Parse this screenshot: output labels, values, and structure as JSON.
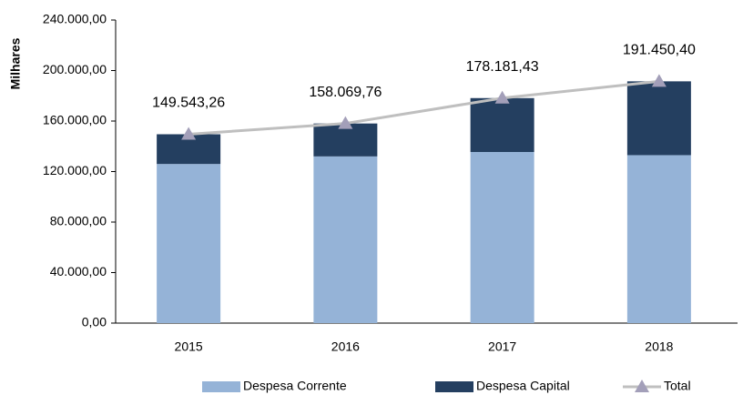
{
  "chart_data": {
    "type": "stacked_bar_line",
    "ylabel": "Milhares",
    "categories": [
      "2015",
      "2016",
      "2017",
      "2018"
    ],
    "series": [
      {
        "name": "Despesa Corrente",
        "type": "bar",
        "color": "#95b3d7",
        "values": [
          126000,
          132000,
          135500,
          133000
        ]
      },
      {
        "name": "Despesa Capital",
        "type": "bar",
        "color": "#243f60",
        "values": [
          23543.26,
          26069.76,
          42681.43,
          58450.4
        ]
      },
      {
        "name": "Total",
        "type": "line",
        "color": "#bfbfbf",
        "marker_color": "#a39fb9",
        "values": [
          149543.26,
          158069.76,
          178181.43,
          191450.4
        ],
        "value_labels": [
          "149.543,26",
          "158.069,76",
          "178.181,43",
          "191.450,40"
        ]
      }
    ],
    "ylim": [
      0,
      240000
    ],
    "yticks": [
      {
        "value": 0,
        "label": "0,00"
      },
      {
        "value": 40000,
        "label": "40.000,00"
      },
      {
        "value": 80000,
        "label": "80.000,00"
      },
      {
        "value": 120000,
        "label": "120.000,00"
      },
      {
        "value": 160000,
        "label": "160.000,00"
      },
      {
        "value": 200000,
        "label": "200.000,00"
      },
      {
        "value": 240000,
        "label": "240.000,00"
      }
    ],
    "grid": false,
    "legend": "bottom"
  }
}
